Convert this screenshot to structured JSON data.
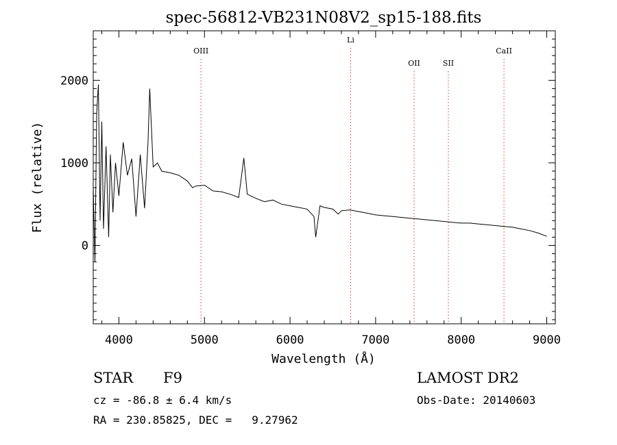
{
  "chart_data": {
    "type": "line",
    "title": "spec-56812-VB231N08V2_sp15-188.fits",
    "xlabel": "Wavelength (Å)",
    "ylabel": "Flux (relative)",
    "xlim": [
      3700,
      9100
    ],
    "ylim": [
      -950,
      2600
    ],
    "xticks": [
      4000,
      5000,
      6000,
      7000,
      8000,
      9000
    ],
    "xtick_labels": [
      "4000",
      "5000",
      "6000",
      "7000",
      "8000",
      "9000"
    ],
    "yticks": [
      0,
      1000,
      2000
    ],
    "ytick_labels": [
      "0",
      "1000",
      "2000"
    ],
    "grid": false,
    "legend": "none",
    "line_color": "#000000",
    "marker_color": "#cc3333",
    "lines": [
      {
        "label": "OIII",
        "x": 4959
      },
      {
        "label": "Li",
        "x": 6708
      },
      {
        "label": "OII",
        "x": 7450
      },
      {
        "label": "SII",
        "x": 7850
      },
      {
        "label": "CaII",
        "x": 8500
      }
    ],
    "series": [
      {
        "x": [
          3700,
          3720,
          3740,
          3760,
          3780,
          3800,
          3820,
          3850,
          3880,
          3900,
          3930,
          3960,
          4000,
          4050,
          4100,
          4150,
          4200,
          4250,
          4300,
          4340,
          4360,
          4400,
          4450,
          4500,
          4600,
          4700,
          4800,
          4860,
          4900,
          5000,
          5100,
          5200,
          5300,
          5400,
          5460,
          5500,
          5600,
          5700,
          5800,
          5900,
          6000,
          6100,
          6200,
          6280,
          6300,
          6350,
          6400,
          6500,
          6563,
          6600,
          6700,
          6800,
          6900,
          7000,
          7100,
          7200,
          7300,
          7400,
          7500,
          7600,
          7700,
          7800,
          7900,
          8000,
          8100,
          8200,
          8300,
          8400,
          8500,
          8600,
          8700,
          8800,
          8900,
          9000
        ],
        "y": [
          700,
          -200,
          1600,
          1950,
          300,
          1500,
          200,
          1200,
          100,
          1100,
          400,
          1000,
          600,
          1250,
          850,
          1050,
          350,
          1100,
          450,
          1250,
          1900,
          950,
          1000,
          900,
          880,
          850,
          780,
          700,
          720,
          730,
          660,
          650,
          620,
          580,
          1060,
          620,
          570,
          530,
          550,
          500,
          480,
          460,
          440,
          350,
          100,
          480,
          460,
          440,
          380,
          420,
          430,
          410,
          390,
          370,
          360,
          350,
          340,
          330,
          320,
          310,
          300,
          290,
          280,
          270,
          270,
          260,
          250,
          240,
          230,
          220,
          200,
          180,
          150,
          110
        ]
      }
    ]
  },
  "info": {
    "object_class": "STAR",
    "subclass": "F9",
    "survey": "LAMOST DR2",
    "redshift": "cz = -86.8 ± 6.4 km/s",
    "obs_date": "Obs-Date: 20140603",
    "coordinates": "RA = 230.85825, DEC =   9.27962"
  }
}
